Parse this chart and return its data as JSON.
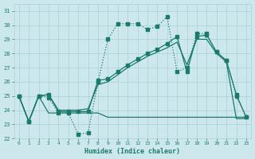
{
  "background_color": "#cde8ec",
  "grid_color": "#a8d0d6",
  "line_color": "#1a7a6e",
  "xlabel": "Humidex (Indice chaleur)",
  "xlim": [
    -0.5,
    23.5
  ],
  "ylim": [
    22,
    31.5
  ],
  "yticks": [
    22,
    23,
    24,
    25,
    26,
    27,
    28,
    29,
    30,
    31
  ],
  "xticks": [
    0,
    1,
    2,
    3,
    4,
    5,
    6,
    7,
    8,
    9,
    10,
    11,
    12,
    13,
    14,
    15,
    16,
    17,
    18,
    19,
    20,
    21,
    22,
    23
  ],
  "curve_dotted_x": [
    0,
    1,
    2,
    3,
    4,
    5,
    6,
    7,
    8,
    9,
    10,
    11,
    12,
    13,
    14,
    15,
    16,
    17,
    18,
    19,
    20,
    21,
    22,
    23
  ],
  "curve_dotted_y": [
    25.0,
    23.2,
    25.0,
    24.9,
    23.8,
    23.8,
    22.3,
    22.4,
    26.0,
    29.0,
    30.1,
    30.1,
    30.1,
    29.7,
    29.9,
    30.6,
    26.7,
    27.0,
    29.4,
    29.4,
    28.1,
    27.5,
    25.0,
    23.5
  ],
  "curve_marker_x": [
    0,
    1,
    2,
    3,
    4,
    5,
    6,
    7,
    8,
    9,
    10,
    11,
    12,
    13,
    14,
    15,
    16,
    17,
    18,
    19,
    20,
    21,
    22,
    23
  ],
  "curve_marker_y": [
    25.0,
    23.2,
    25.0,
    25.1,
    23.9,
    23.9,
    23.9,
    23.9,
    26.1,
    26.2,
    26.7,
    27.2,
    27.6,
    28.0,
    28.3,
    28.7,
    29.2,
    26.7,
    29.2,
    29.3,
    28.1,
    27.5,
    25.1,
    23.5
  ],
  "curve_rising_x": [
    0,
    1,
    2,
    3,
    4,
    5,
    6,
    7,
    8,
    9,
    10,
    11,
    12,
    13,
    14,
    15,
    16,
    17,
    18,
    19,
    20,
    21,
    22,
    23
  ],
  "curve_rising_y": [
    25.0,
    23.2,
    25.0,
    25.1,
    24.0,
    24.0,
    24.0,
    24.1,
    25.8,
    26.0,
    26.5,
    27.0,
    27.4,
    27.8,
    28.1,
    28.4,
    28.8,
    27.2,
    29.0,
    29.0,
    28.0,
    27.4,
    23.4,
    23.4
  ],
  "curve_flat_x": [
    0,
    1,
    2,
    3,
    4,
    5,
    6,
    7,
    8,
    9,
    10,
    11,
    12,
    13,
    14,
    15,
    16,
    17,
    18,
    19,
    20,
    21,
    22,
    23
  ],
  "curve_flat_y": [
    25.0,
    23.2,
    25.0,
    23.8,
    23.8,
    23.8,
    23.8,
    23.8,
    23.8,
    23.5,
    23.5,
    23.5,
    23.5,
    23.5,
    23.5,
    23.5,
    23.5,
    23.5,
    23.5,
    23.5,
    23.5,
    23.5,
    23.5,
    23.5
  ]
}
